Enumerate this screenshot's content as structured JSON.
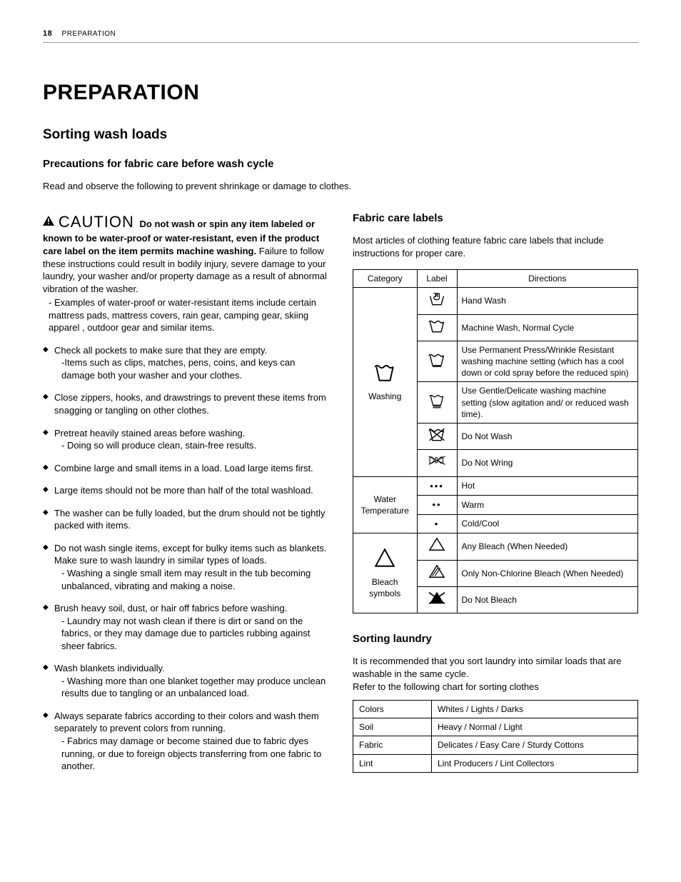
{
  "page": {
    "number": "18",
    "section": "PREPARATION"
  },
  "h1": "PREPARATION",
  "h2": "Sorting wash loads",
  "h3_precautions": "Precautions for fabric care before wash cycle",
  "intro": "Read and observe the following to prevent shrinkage or damage to clothes.",
  "caution": {
    "word": "CAUTION",
    "bold": "Do not wash or spin any item labeled or known to be water-proof or water-resistant, even if the product care label on the item permits machine washing.",
    "rest": "Failure to follow these instructions could result in bodily injury, severe damage to your laundry, your washer and/or property damage as a result of abnormal vibration of the washer.",
    "example": "- Examples of water-proof or water-resistant items include certain mattress pads, mattress covers, rain gear, camping gear, skiing apparel , outdoor gear and similar items."
  },
  "bullets": [
    {
      "main": "Check all pockets to make sure that they are empty.",
      "sub": "-Items such as clips, matches, pens, coins, and keys can damage both your washer and your clothes."
    },
    {
      "main": "Close zippers, hooks, and drawstrings to prevent these items from snagging or tangling on other clothes."
    },
    {
      "main": "Pretreat heavily stained areas before washing.",
      "sub": "- Doing so will produce clean, stain-free results."
    },
    {
      "main": "Combine large and small items in a load. Load large items first."
    },
    {
      "main": "Large items should not be more than half of the total washload."
    },
    {
      "main": "The washer can be fully loaded, but the drum should not be tightly packed with items."
    },
    {
      "main": "Do not wash single items, except for bulky items such as blankets. Make sure to wash laundry in similar types of loads.",
      "sub": "- Washing a single small item may result in the tub becoming unbalanced, vibrating and making a noise."
    },
    {
      "main": "Brush heavy soil, dust, or hair off fabrics before washing.",
      "sub": "- Laundry may not wash clean if there is dirt or sand on the fabrics, or they may damage due to particles rubbing against sheer fabrics."
    },
    {
      "main": "Wash blankets individually.",
      "sub": "- Washing more than one blanket together may produce unclean results due to tangling or an unbalanced load."
    },
    {
      "main": "Always separate fabrics according to their colors and wash them separately to prevent colors from running.",
      "sub": "- Fabrics may damage or become stained due to fabric dyes running, or due to foreign objects transferring from one fabric to another."
    }
  ],
  "fabric": {
    "title": "Fabric care labels",
    "intro": "Most articles of clothing feature fabric care labels that include instructions for proper care.",
    "headers": [
      "Category",
      "Label",
      "Directions"
    ],
    "groups": [
      {
        "category": "Washing",
        "rows": [
          {
            "dir": "Hand Wash"
          },
          {
            "dir": "Machine Wash, Normal Cycle"
          },
          {
            "dir": "Use Permanent Press/Wrinkle Resistant washing machine setting (which has a cool down or cold spray before the reduced spin)"
          },
          {
            "dir": "Use Gentle/Delicate washing machine setting (slow agitation and/ or reduced wash time)."
          },
          {
            "dir": "Do Not Wash"
          },
          {
            "dir": "Do Not Wring"
          }
        ]
      },
      {
        "category": "Water Temperature",
        "rows": [
          {
            "label": "•••",
            "dir": "Hot"
          },
          {
            "label": "••",
            "dir": "Warm"
          },
          {
            "label": "•",
            "dir": "Cold/Cool"
          }
        ]
      },
      {
        "category": "Bleach symbols",
        "rows": [
          {
            "label": "△",
            "dir": "Any Bleach (When Needed)"
          },
          {
            "dir": "Only Non-Chlorine Bleach (When Needed)"
          },
          {
            "dir": "Do Not Bleach"
          }
        ]
      }
    ]
  },
  "sorting": {
    "title": "Sorting laundry",
    "intro1": "It is recommended that you sort laundry into similar loads that are washable in the same cycle.",
    "intro2": "Refer to the following chart for sorting clothes",
    "rows": [
      {
        "k": "Colors",
        "v": "Whites / Lights / Darks"
      },
      {
        "k": "Soil",
        "v": "Heavy / Normal / Light"
      },
      {
        "k": "Fabric",
        "v": "Delicates / Easy Care / Sturdy Cottons"
      },
      {
        "k": "Lint",
        "v": "Lint Producers / Lint Collectors"
      }
    ]
  }
}
